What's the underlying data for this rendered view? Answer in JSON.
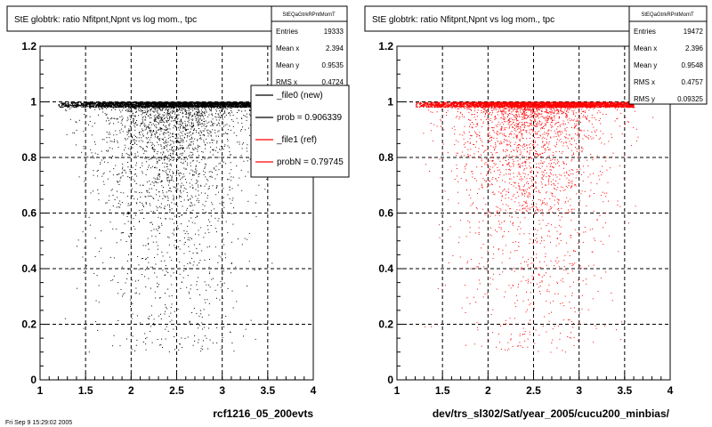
{
  "chart_data": [
    {
      "type": "scatter",
      "title": "StE globtrk: ratio Nfitpnt,Npnt vs log mom., tpc",
      "xlabel": "rcf1216_05_200evts",
      "ylabel": "",
      "xlim": [
        1,
        4
      ],
      "ylim": [
        0,
        1.2
      ],
      "x_ticks": [
        "1",
        "1.5",
        "2",
        "2.5",
        "3",
        "3.5",
        "4"
      ],
      "y_ticks": [
        "0",
        "0.2",
        "0.4",
        "0.6",
        "0.8",
        "1",
        "1.2"
      ],
      "grid": true,
      "stats": {
        "name": "StEQaGtrkRPntMomT",
        "rows": [
          {
            "label": "Entries",
            "value": "19333"
          },
          {
            "label": "Mean x",
            "value": "2.394"
          },
          {
            "label": "Mean y",
            "value": "0.9535"
          },
          {
            "label": "RMS x",
            "value": "0.4724"
          }
        ]
      },
      "legend": {
        "placement": "top-right",
        "entries": [
          {
            "label": "_file0 (new)",
            "color": "#000000"
          },
          {
            "label": "prob = 0.906339",
            "color": "#000000"
          },
          {
            "label": "_file1 (ref)",
            "color": "#ff0000"
          },
          {
            "label": "probN = 0.79745",
            "color": "#ff0000"
          }
        ]
      },
      "series": [
        {
          "color": "#000000",
          "band": {
            "y": 1.0,
            "x": [
              1.2,
              3.65
            ]
          },
          "density": {
            "x_mean": 2.45,
            "x_sd": 0.42,
            "y_core": 0.93
          }
        }
      ]
    },
    {
      "type": "scatter",
      "title": "StE globtrk: ratio Nfitpnt,Npnt vs log mom., tpc",
      "xlabel": "dev/trs_sl302/Sat/year_2005/cucu200_minbias/",
      "ylabel": "",
      "xlim": [
        1,
        4
      ],
      "ylim": [
        0,
        1.2
      ],
      "x_ticks": [
        "1",
        "1.5",
        "2",
        "2.5",
        "3",
        "3.5",
        "4"
      ],
      "y_ticks": [
        "0",
        "0.2",
        "0.4",
        "0.6",
        "0.8",
        "1",
        "1.2"
      ],
      "grid": true,
      "stats": {
        "name": "StEQaGtrkRPntMomT",
        "rows": [
          {
            "label": "Entries",
            "value": "19472"
          },
          {
            "label": "Mean x",
            "value": "2.396"
          },
          {
            "label": "Mean y",
            "value": "0.9548"
          },
          {
            "label": "RMS x",
            "value": "0.4757"
          },
          {
            "label": "RMS y",
            "value": "0.09325"
          }
        ]
      },
      "series": [
        {
          "color": "#ff0000",
          "band": {
            "y": 1.0,
            "x": [
              1.2,
              3.6
            ]
          },
          "density": {
            "x_mean": 2.45,
            "x_sd": 0.42,
            "y_core": 0.93
          }
        }
      ]
    }
  ],
  "footer": "Fri Sep  9 15:29:02 2005"
}
